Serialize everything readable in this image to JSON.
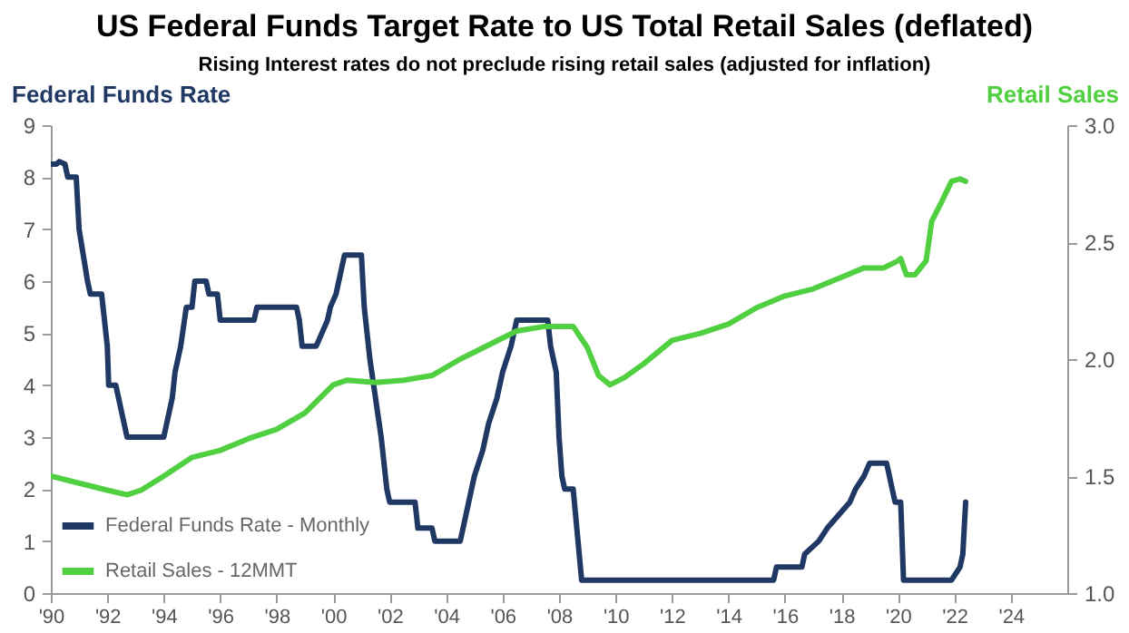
{
  "chart_data": {
    "type": "line",
    "title": "US Federal Funds Target Rate to US Total Retail Sales (deflated)",
    "subtitle": "Rising Interest rates do not preclude rising retail sales (adjusted for inflation)",
    "ylabel": "Federal Funds Rate",
    "y2label": "Retail Sales",
    "xlim": [
      1990,
      2026
    ],
    "xticks": [
      {
        "value": 1990,
        "label": "'90"
      },
      {
        "value": 1992,
        "label": "'92"
      },
      {
        "value": 1994,
        "label": "'94"
      },
      {
        "value": 1996,
        "label": "'96"
      },
      {
        "value": 1998,
        "label": "'98"
      },
      {
        "value": 2000,
        "label": "'00"
      },
      {
        "value": 2002,
        "label": "'02"
      },
      {
        "value": 2004,
        "label": "'04"
      },
      {
        "value": 2006,
        "label": "'06"
      },
      {
        "value": 2008,
        "label": "'08"
      },
      {
        "value": 2010,
        "label": "'10"
      },
      {
        "value": 2012,
        "label": "'12"
      },
      {
        "value": 2014,
        "label": "'14"
      },
      {
        "value": 2016,
        "label": "'16"
      },
      {
        "value": 2018,
        "label": "'18"
      },
      {
        "value": 2020,
        "label": "'20"
      },
      {
        "value": 2022,
        "label": "'22"
      },
      {
        "value": 2024,
        "label": "'24"
      }
    ],
    "ylim": [
      0,
      9
    ],
    "yticks": [
      0,
      1,
      2,
      3,
      4,
      5,
      6,
      7,
      8,
      9
    ],
    "y2lim": [
      1,
      3
    ],
    "y2ticks": [
      {
        "value": 1,
        "label": "1.0"
      },
      {
        "value": 1.5,
        "label": "1.5"
      },
      {
        "value": 2,
        "label": "2.0"
      },
      {
        "value": 2.5,
        "label": "2.5"
      },
      {
        "value": 3,
        "label": "3.0"
      }
    ],
    "grid": false,
    "legend": "bottom left",
    "line_style": "solid",
    "series": [
      {
        "name": "Federal Funds Rate - Monthly",
        "color": "#1f3864",
        "x": [
          1990,
          1990.2,
          1990.3,
          1990.5,
          1990.6,
          1990.9,
          1991,
          1991.3,
          1991.4,
          1991.8,
          1992,
          1992.05,
          1992.3,
          1992.4,
          1992.6,
          1992.7,
          1994,
          1994.1,
          1994.3,
          1994.4,
          1994.6,
          1994.8,
          1995,
          1995.1,
          1995.5,
          1995.6,
          1995.9,
          1996,
          1997.2,
          1997.3,
          1998.7,
          1998.8,
          1998.9,
          1999.4,
          1999.6,
          1999.8,
          1999.9,
          2000.1,
          2000.2,
          2000.4,
          2001,
          2001.1,
          2001.3,
          2001.5,
          2001.7,
          2001.9,
          2002,
          2002.9,
          2003,
          2003.5,
          2003.6,
          2004.5,
          2004.6,
          2004.7,
          2004.9,
          2005,
          2005.3,
          2005.5,
          2005.8,
          2006,
          2006.3,
          2006.5,
          2007.6,
          2007.7,
          2007.9,
          2008,
          2008.1,
          2008.2,
          2008.5,
          2008.8,
          2015.6,
          2015.7,
          2016.6,
          2016.7,
          2017.2,
          2017.5,
          2017.9,
          2018.3,
          2018.5,
          2018.8,
          2019,
          2019.6,
          2019.7,
          2019.8,
          2019.9,
          2020.1,
          2020.2,
          2021.9,
          2022.2,
          2022.3,
          2022.4
        ],
        "values": [
          8.25,
          8.25,
          8.3,
          8.25,
          8,
          8,
          7,
          6,
          5.75,
          5.75,
          4.75,
          4,
          4,
          3.75,
          3.25,
          3,
          3,
          3.25,
          3.75,
          4.25,
          4.75,
          5.5,
          5.5,
          6,
          6,
          5.75,
          5.75,
          5.25,
          5.25,
          5.5,
          5.5,
          5.25,
          4.75,
          4.75,
          5,
          5.25,
          5.5,
          5.75,
          6,
          6.5,
          6.5,
          5.5,
          4.5,
          3.75,
          3,
          2,
          1.75,
          1.75,
          1.25,
          1.25,
          1,
          1,
          1.25,
          1.5,
          2,
          2.25,
          2.75,
          3.25,
          3.75,
          4.25,
          4.75,
          5.25,
          5.25,
          4.75,
          4.25,
          3,
          2.25,
          2,
          2,
          0.25,
          0.25,
          0.5,
          0.5,
          0.75,
          1,
          1.25,
          1.5,
          1.75,
          2,
          2.25,
          2.5,
          2.5,
          2.25,
          2,
          1.75,
          1.75,
          0.25,
          0.25,
          0.5,
          0.75,
          1.75
        ]
      },
      {
        "name": "Retail Sales - 12MMT",
        "color": "#50d040",
        "axis": "y2",
        "x": [
          1990,
          1991,
          1992,
          1992.7,
          1993.2,
          1994,
          1995,
          1996,
          1997,
          1998,
          1999,
          2000,
          2000.5,
          2001.5,
          2002.5,
          2003.5,
          2004.5,
          2005.5,
          2006.5,
          2007.5,
          2008,
          2008.5,
          2009,
          2009.4,
          2009.8,
          2010.3,
          2011,
          2012,
          2013,
          2014,
          2015,
          2016,
          2017,
          2018,
          2018.8,
          2019.5,
          2020,
          2020.1,
          2020.3,
          2020.6,
          2021,
          2021.2,
          2021.5,
          2021.9,
          2022.2,
          2022.4
        ],
        "values": [
          1.5,
          1.47,
          1.44,
          1.42,
          1.44,
          1.5,
          1.58,
          1.61,
          1.66,
          1.7,
          1.77,
          1.89,
          1.91,
          1.9,
          1.91,
          1.93,
          2,
          2.06,
          2.12,
          2.14,
          2.14,
          2.14,
          2.05,
          1.93,
          1.89,
          1.92,
          1.98,
          2.08,
          2.11,
          2.15,
          2.22,
          2.27,
          2.3,
          2.35,
          2.39,
          2.39,
          2.42,
          2.43,
          2.36,
          2.36,
          2.42,
          2.59,
          2.66,
          2.76,
          2.77,
          2.76
        ]
      }
    ]
  }
}
